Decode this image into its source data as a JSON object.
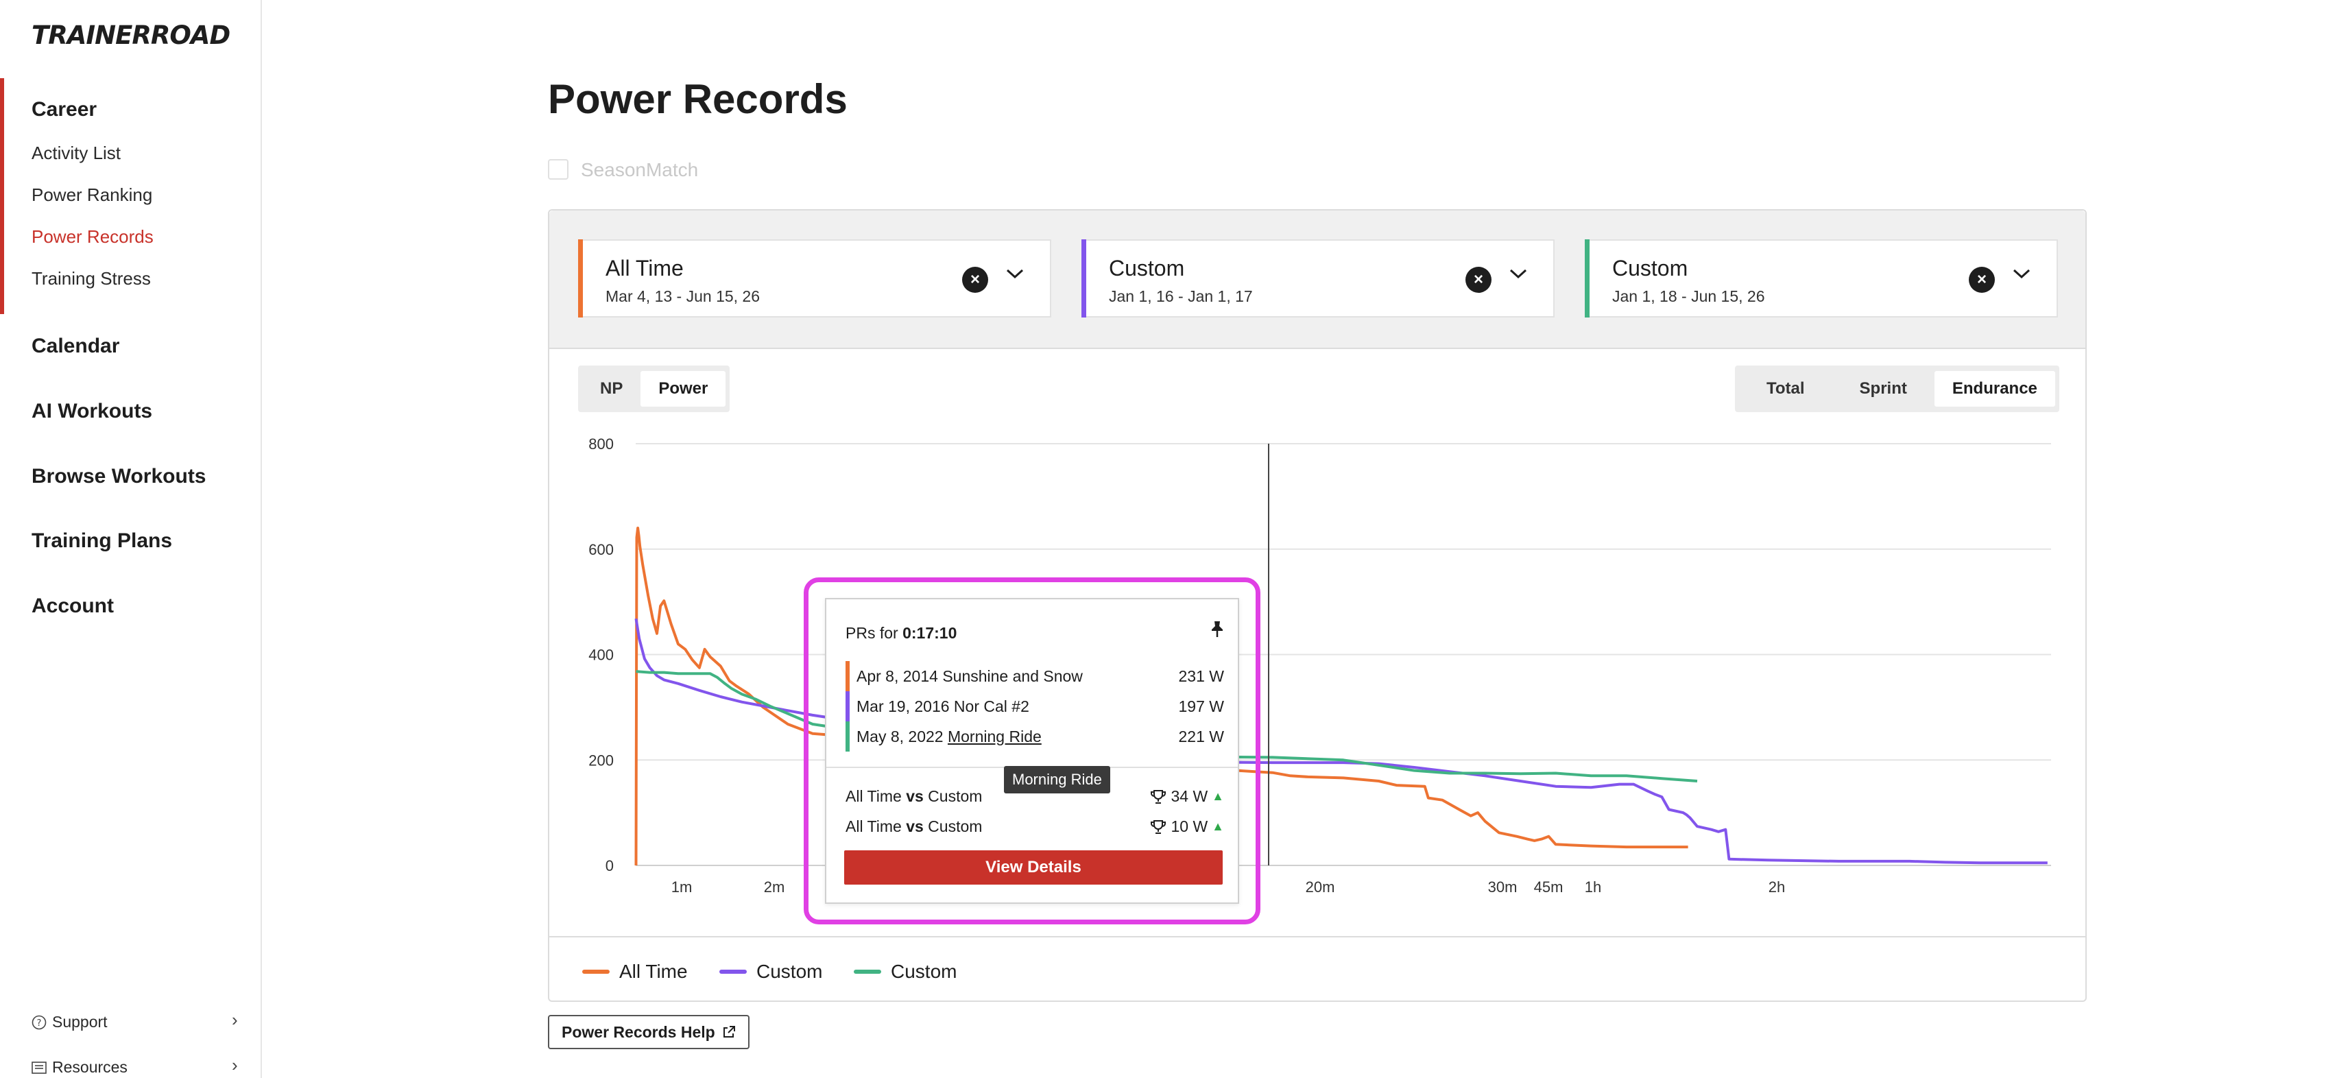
{
  "brand": {
    "logo_text": "TRAINERROAD"
  },
  "sidebar": {
    "career": {
      "label": "Career",
      "items": [
        {
          "label": "Activity List",
          "active": false
        },
        {
          "label": "Power Ranking",
          "active": false
        },
        {
          "label": "Power Records",
          "active": true
        },
        {
          "label": "Training Stress",
          "active": false
        }
      ]
    },
    "sections": [
      {
        "label": "Calendar"
      },
      {
        "label": "AI Workouts"
      },
      {
        "label": "Browse Workouts"
      },
      {
        "label": "Training Plans"
      },
      {
        "label": "Account"
      }
    ],
    "footer": [
      {
        "label": "Support",
        "icon": "question-circle-icon"
      },
      {
        "label": "Resources",
        "icon": "list-icon"
      }
    ]
  },
  "page": {
    "title": "Power Records",
    "seasonmatch_label": "SeasonMatch",
    "seasonmatch_checked": false
  },
  "ranges": [
    {
      "name": "All Time",
      "dates": "Mar 4, 13 - Jun 15, 26",
      "color": "#ed7332"
    },
    {
      "name": "Custom",
      "dates": "Jan 1, 16 - Jan 1, 17",
      "color": "#8255ec"
    },
    {
      "name": "Custom",
      "dates": "Jan 1, 18 - Jun 15, 26",
      "color": "#41b383"
    }
  ],
  "metric_toggle": {
    "options": [
      "NP",
      "Power"
    ],
    "selected": "Power"
  },
  "type_toggle": {
    "options": [
      "Total",
      "Sprint",
      "Endurance"
    ],
    "selected": "Endurance"
  },
  "colors": {
    "accent": "#c8322a",
    "orange": "#ed7332",
    "purple": "#8255ec",
    "green": "#41b383",
    "highlight": "#e040e4"
  },
  "chart_data": {
    "type": "line",
    "ylim": [
      0,
      800
    ],
    "yticks": [
      "0",
      "200",
      "400",
      "600",
      "800"
    ],
    "xticks": [
      "1m",
      "2m",
      "20m",
      "30m",
      "45m",
      "1h",
      "2h"
    ],
    "x_scale": "log-duration",
    "grid": true,
    "legend_position": "bottom",
    "series": [
      {
        "name": "All Time",
        "color": "#ed7332",
        "points": [
          [
            1,
            0
          ],
          [
            3,
            622
          ],
          [
            6,
            640
          ],
          [
            9,
            625
          ],
          [
            12,
            605
          ],
          [
            20,
            570
          ],
          [
            35,
            512
          ],
          [
            48,
            468
          ],
          [
            60,
            440
          ],
          [
            70,
            492
          ],
          [
            80,
            502
          ],
          [
            100,
            458
          ],
          [
            120,
            420
          ],
          [
            140,
            410
          ],
          [
            160,
            390
          ],
          [
            180,
            375
          ],
          [
            195,
            410
          ],
          [
            210,
            396
          ],
          [
            240,
            378
          ],
          [
            265,
            350
          ],
          [
            285,
            340
          ],
          [
            320,
            325
          ],
          [
            360,
            300
          ],
          [
            430,
            268
          ],
          [
            500,
            250
          ],
          [
            600,
            245
          ],
          [
            720,
            240
          ],
          [
            820,
            232
          ],
          [
            900,
            230
          ],
          [
            1000,
            226
          ],
          [
            1150,
            222
          ],
          [
            1250,
            210
          ],
          [
            1400,
            205
          ],
          [
            1500,
            205
          ],
          [
            1560,
            200
          ],
          [
            1600,
            200
          ],
          [
            1650,
            192
          ],
          [
            1700,
            180
          ],
          [
            1750,
            178
          ],
          [
            1800,
            176
          ],
          [
            1850,
            170
          ],
          [
            1900,
            168
          ],
          [
            2000,
            166
          ],
          [
            2100,
            160
          ],
          [
            2150,
            152
          ],
          [
            2230,
            150
          ],
          [
            2240,
            128
          ],
          [
            2280,
            124
          ],
          [
            2330,
            105
          ],
          [
            2360,
            94
          ],
          [
            2380,
            100
          ],
          [
            2400,
            84
          ],
          [
            2440,
            62
          ],
          [
            2490,
            55
          ],
          [
            2520,
            50
          ],
          [
            2540,
            47
          ],
          [
            2560,
            50
          ],
          [
            2580,
            55
          ],
          [
            2600,
            40
          ],
          [
            2700,
            37
          ],
          [
            2800,
            35
          ],
          [
            2974,
            35
          ]
        ]
      },
      {
        "name": "Custom",
        "color": "#8255ec",
        "points": [
          [
            1,
            468
          ],
          [
            10,
            430
          ],
          [
            25,
            392
          ],
          [
            40,
            375
          ],
          [
            60,
            360
          ],
          [
            80,
            352
          ],
          [
            120,
            345
          ],
          [
            180,
            332
          ],
          [
            240,
            320
          ],
          [
            300,
            310
          ],
          [
            380,
            300
          ],
          [
            500,
            285
          ],
          [
            650,
            270
          ],
          [
            800,
            262
          ],
          [
            1000,
            250
          ],
          [
            1200,
            230
          ],
          [
            1350,
            208
          ],
          [
            1440,
            200
          ],
          [
            1600,
            196
          ],
          [
            1800,
            195
          ],
          [
            2000,
            195
          ],
          [
            2100,
            193
          ],
          [
            2200,
            186
          ],
          [
            2300,
            178
          ],
          [
            2400,
            170
          ],
          [
            2500,
            160
          ],
          [
            2600,
            150
          ],
          [
            2700,
            148
          ],
          [
            2780,
            154
          ],
          [
            2820,
            154
          ],
          [
            2860,
            141
          ],
          [
            2880,
            135
          ],
          [
            2900,
            130
          ],
          [
            2920,
            106
          ],
          [
            2960,
            100
          ],
          [
            2970,
            96
          ],
          [
            2980,
            90
          ],
          [
            3000,
            74
          ],
          [
            3040,
            68
          ],
          [
            3060,
            64
          ],
          [
            3080,
            68
          ],
          [
            3090,
            12
          ],
          [
            3200,
            10
          ],
          [
            3400,
            8
          ],
          [
            3600,
            8
          ],
          [
            3700,
            6
          ],
          [
            3800,
            5
          ],
          [
            3990,
            5
          ]
        ]
      },
      {
        "name": "Custom",
        "color": "#41b383",
        "points": [
          [
            1,
            368
          ],
          [
            40,
            366
          ],
          [
            80,
            366
          ],
          [
            120,
            364
          ],
          [
            180,
            364
          ],
          [
            210,
            364
          ],
          [
            230,
            357
          ],
          [
            250,
            346
          ],
          [
            270,
            336
          ],
          [
            300,
            325
          ],
          [
            340,
            315
          ],
          [
            380,
            302
          ],
          [
            430,
            288
          ],
          [
            500,
            268
          ],
          [
            700,
            248
          ],
          [
            900,
            238
          ],
          [
            1100,
            226
          ],
          [
            1250,
            220
          ],
          [
            1400,
            210
          ],
          [
            1600,
            206
          ],
          [
            1800,
            205
          ],
          [
            2000,
            200
          ],
          [
            2100,
            190
          ],
          [
            2200,
            180
          ],
          [
            2300,
            175
          ],
          [
            2400,
            175
          ],
          [
            2500,
            174
          ],
          [
            2600,
            175
          ],
          [
            2700,
            170
          ],
          [
            2800,
            170
          ],
          [
            2900,
            165
          ],
          [
            3000,
            160
          ]
        ]
      }
    ],
    "cursor_time": "0:17:10"
  },
  "tooltip": {
    "prefix": "PRs for",
    "time": "0:17:10",
    "pin_icon": "pin-icon",
    "prs": [
      {
        "date": "Apr 8, 2014",
        "name": "Sunshine and Snow",
        "value": "231 W",
        "color": "#ed7332",
        "link": false
      },
      {
        "date": "Mar 19, 2016",
        "name": "Nor Cal #2",
        "value": "197 W",
        "color": "#8255ec",
        "link": false
      },
      {
        "date": "May 8, 2022",
        "name": "Morning Ride",
        "value": "221 W",
        "color": "#41b383",
        "link": true
      }
    ],
    "comparisons": [
      {
        "a": "All Time",
        "vs": "vs",
        "b": "Custom",
        "delta": "34 W"
      },
      {
        "a": "All Time",
        "vs": "vs",
        "b": "Custom",
        "delta": "10 W"
      }
    ],
    "button_label": "View Details"
  },
  "hover_label": "Morning Ride",
  "legend": [
    {
      "label": "All Time",
      "color": "#ed7332"
    },
    {
      "label": "Custom",
      "color": "#8255ec"
    },
    {
      "label": "Custom",
      "color": "#41b383"
    }
  ],
  "help_button": "Power Records Help"
}
